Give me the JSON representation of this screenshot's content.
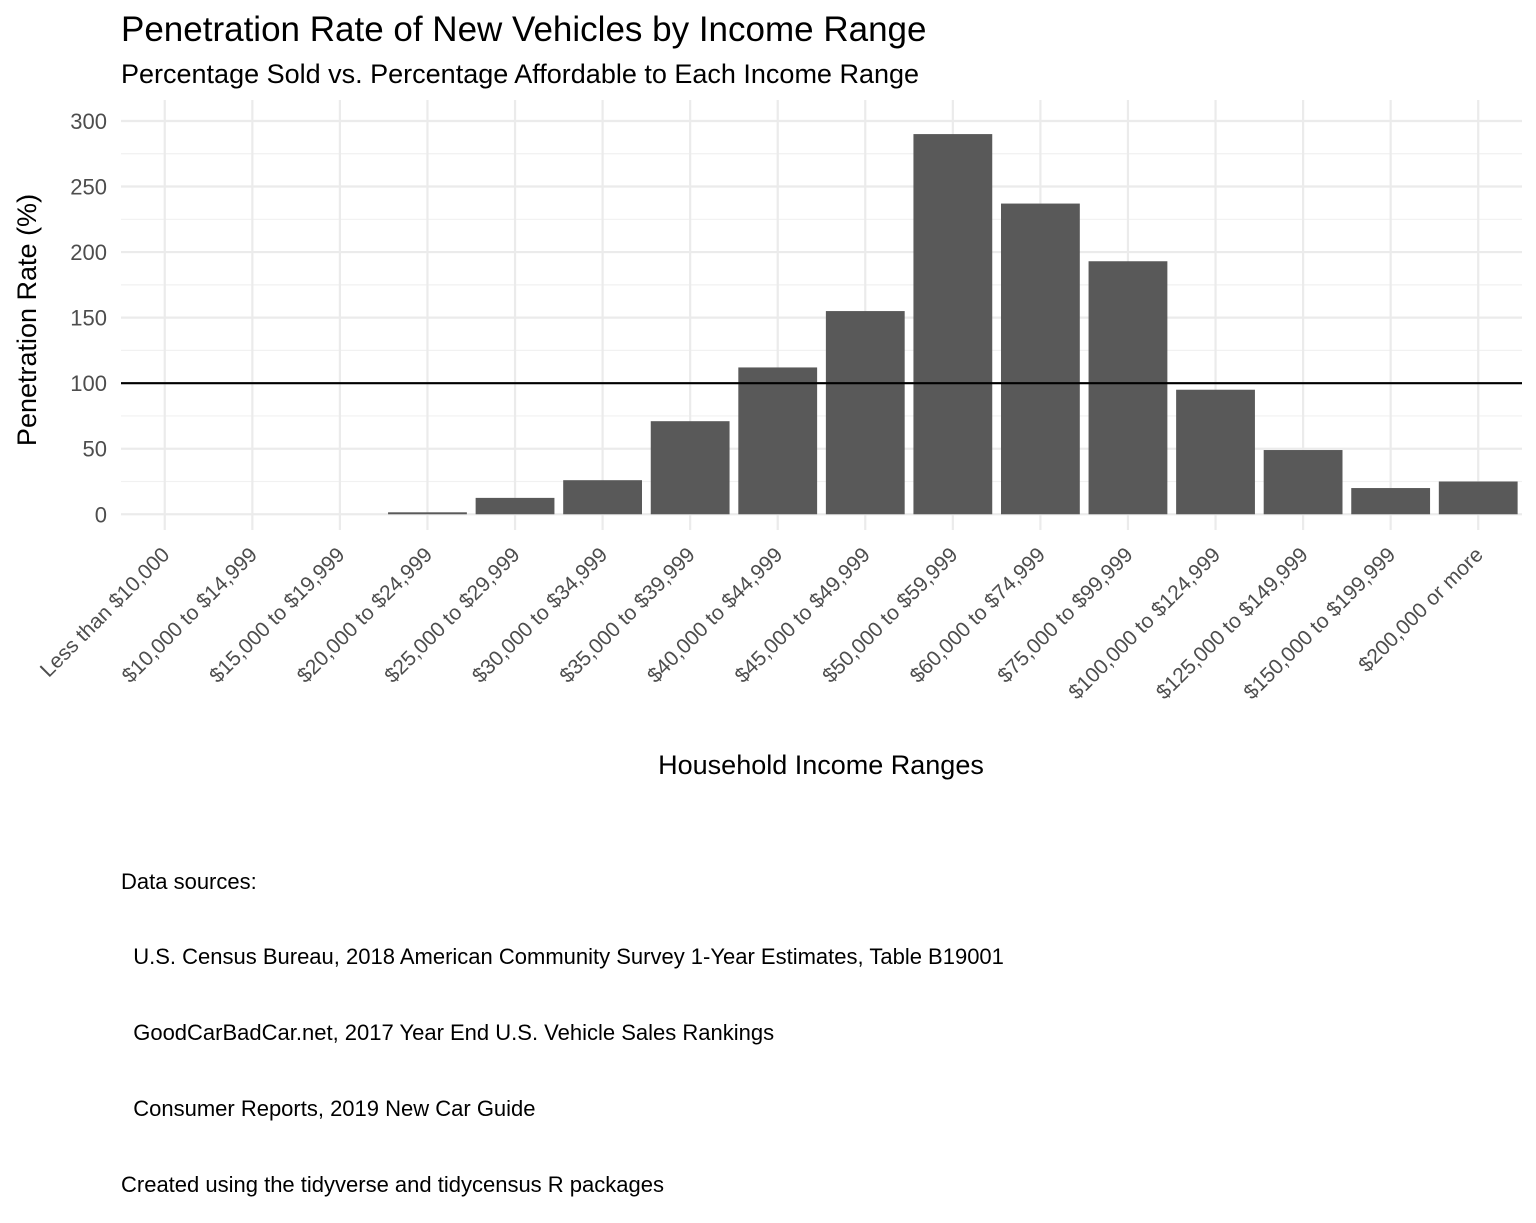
{
  "chart_data": {
    "type": "bar",
    "title": "Penetration Rate of New Vehicles by Income Range",
    "subtitle": "Percentage Sold vs. Percentage Affordable to Each Income Range",
    "xlabel": "Household Income Ranges",
    "ylabel": "Penetration Rate (%)",
    "categories": [
      "Less than $10,000",
      "$10,000 to $14,999",
      "$15,000 to $19,999",
      "$20,000 to $24,999",
      "$25,000 to $29,999",
      "$30,000 to $34,999",
      "$35,000 to $39,999",
      "$40,000 to $44,999",
      "$45,000 to $49,999",
      "$50,000 to $59,999",
      "$60,000 to $74,999",
      "$75,000 to $99,999",
      "$100,000 to $124,999",
      "$125,000 to $149,999",
      "$150,000 to $199,999",
      "$200,000 or more"
    ],
    "values": [
      0,
      0,
      0,
      1.5,
      12.5,
      26,
      71,
      112,
      155,
      290,
      237,
      193,
      95,
      49,
      20,
      25
    ],
    "yticks": [
      "0",
      "50",
      "100",
      "150",
      "200",
      "250",
      "300"
    ],
    "ylim": [
      -12,
      316
    ],
    "reference_line": 100,
    "bar_color": "#595959",
    "grid": true,
    "caption": [
      "Data sources:",
      "  U.S. Census Bureau, 2018 American Community Survey 1-Year Estimates, Table B19001",
      "  GoodCarBadCar.net, 2017 Year End U.S. Vehicle Sales Rankings",
      "  Consumer Reports, 2019 New Car Guide",
      "Created using the tidyverse and tidycensus R packages"
    ]
  }
}
